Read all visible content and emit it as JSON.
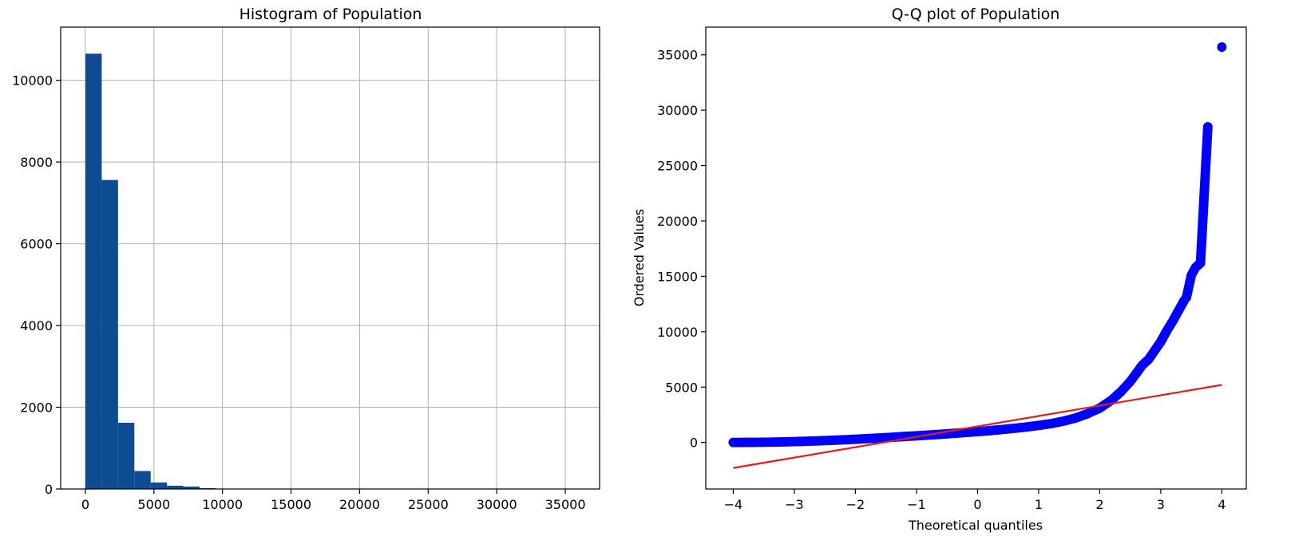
{
  "colors": {
    "hist_bar": "#0d4c92",
    "qq_points": "#0000ff",
    "qq_line": "#e41a1c",
    "grid": "#b0b0b0"
  },
  "chart_data": [
    {
      "type": "bar",
      "title": "Histogram of Population",
      "xlabel": "",
      "ylabel": "",
      "xlim": [
        -1800,
        37500
      ],
      "ylim": [
        0,
        11300
      ],
      "grid": true,
      "xticks": [
        0,
        5000,
        10000,
        15000,
        20000,
        25000,
        30000,
        35000
      ],
      "xtick_labels": [
        "0",
        "5000",
        "10000",
        "15000",
        "20000",
        "25000",
        "30000",
        "35000"
      ],
      "yticks": [
        0,
        2000,
        4000,
        6000,
        8000,
        10000
      ],
      "ytick_labels": [
        "0",
        "2000",
        "4000",
        "6000",
        "8000",
        "10000"
      ],
      "bin_width": 1190,
      "bin_start": 3,
      "values": [
        10650,
        7560,
        1620,
        440,
        160,
        80,
        60,
        20,
        5,
        2,
        1,
        1,
        0,
        0,
        0,
        0,
        0,
        0,
        0,
        0,
        0,
        0,
        0,
        0,
        0,
        0,
        0,
        0,
        0,
        0
      ]
    },
    {
      "type": "scatter",
      "title": "Q-Q plot of Population",
      "xlabel": "Theoretical quantiles",
      "ylabel": "Ordered Values",
      "xlim": [
        -4.45,
        4.4
      ],
      "ylim": [
        -4200,
        37500
      ],
      "grid": false,
      "xticks": [
        -4,
        -3,
        -2,
        -1,
        0,
        1,
        2,
        3,
        4
      ],
      "xtick_labels": [
        "−4",
        "−3",
        "−2",
        "−1",
        "0",
        "1",
        "2",
        "3",
        "4"
      ],
      "yticks": [
        0,
        5000,
        10000,
        15000,
        20000,
        25000,
        30000,
        35000
      ],
      "ytick_labels": [
        "0",
        "5000",
        "10000",
        "15000",
        "20000",
        "25000",
        "30000",
        "35000"
      ],
      "points": [
        [
          -4.0,
          5
        ],
        [
          -3.77,
          10
        ],
        [
          -3.65,
          15
        ],
        [
          -3.55,
          20
        ],
        [
          -3.4,
          30
        ],
        [
          -3.2,
          50
        ],
        [
          -3.0,
          80
        ],
        [
          -2.8,
          110
        ],
        [
          -2.6,
          150
        ],
        [
          -2.4,
          190
        ],
        [
          -2.2,
          240
        ],
        [
          -2.0,
          290
        ],
        [
          -1.8,
          350
        ],
        [
          -1.6,
          410
        ],
        [
          -1.4,
          470
        ],
        [
          -1.2,
          540
        ],
        [
          -1.0,
          600
        ],
        [
          -0.8,
          670
        ],
        [
          -0.6,
          740
        ],
        [
          -0.4,
          820
        ],
        [
          -0.2,
          900
        ],
        [
          0.0,
          980
        ],
        [
          0.2,
          1070
        ],
        [
          0.4,
          1170
        ],
        [
          0.6,
          1280
        ],
        [
          0.8,
          1400
        ],
        [
          1.0,
          1540
        ],
        [
          1.2,
          1700
        ],
        [
          1.4,
          1920
        ],
        [
          1.6,
          2200
        ],
        [
          1.8,
          2600
        ],
        [
          2.0,
          3100
        ],
        [
          2.2,
          3850
        ],
        [
          2.35,
          4600
        ],
        [
          2.5,
          5500
        ],
        [
          2.62,
          6400
        ],
        [
          2.7,
          7000
        ],
        [
          2.8,
          7500
        ],
        [
          2.9,
          8300
        ],
        [
          3.0,
          9100
        ],
        [
          3.1,
          10100
        ],
        [
          3.2,
          11000
        ],
        [
          3.3,
          12000
        ],
        [
          3.38,
          12800
        ],
        [
          3.42,
          13100
        ],
        [
          3.5,
          15100
        ],
        [
          3.57,
          15800
        ],
        [
          3.65,
          16200
        ],
        [
          3.77,
          28500
        ],
        [
          4.0,
          35700
        ]
      ],
      "series": [
        {
          "type": "line",
          "values": [
            [
              -4.0,
              -2300
            ],
            [
              4.0,
              5200
            ]
          ]
        }
      ]
    }
  ]
}
